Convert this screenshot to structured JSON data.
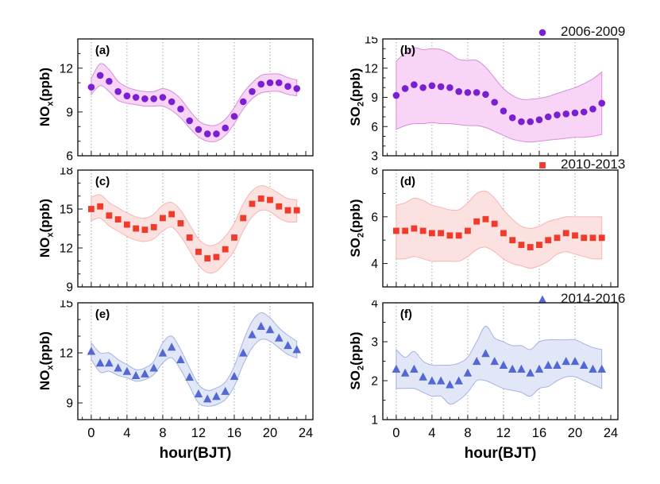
{
  "legend": [
    {
      "label": "2006-2009",
      "marker": "circle",
      "color": "#7a1fd2"
    },
    {
      "label": "2010-2013",
      "marker": "square",
      "color": "#ef3b2c"
    },
    {
      "label": "2014-2016",
      "marker": "triangle",
      "color": "#5468d4"
    }
  ],
  "chart_data": {
    "type": "scatter",
    "xlabel": "hour(BJT)",
    "x": [
      0,
      1,
      2,
      3,
      4,
      5,
      6,
      7,
      8,
      9,
      10,
      11,
      12,
      13,
      14,
      15,
      16,
      17,
      18,
      19,
      20,
      21,
      22,
      23
    ],
    "xlim": [
      -1.5,
      24.8
    ],
    "xticks": [
      0,
      4,
      8,
      12,
      16,
      20,
      24
    ],
    "x_minor_step": 1,
    "gridlines_x": [
      0,
      4,
      8,
      12,
      16,
      20
    ],
    "grid_style": "dotted-vertical",
    "legend_position": "above-right-panels",
    "panels": [
      {
        "letter": "(a)",
        "series": "2006-2009",
        "ylabel": {
          "pre": "NO",
          "sub": "x",
          "post": "(ppb)"
        },
        "marker": "circle",
        "marker_color": "#7a1fd2",
        "band_fill": "#f8d4f6",
        "band_edge": "#d590da",
        "ylim": [
          6,
          14
        ],
        "yticks": [
          6,
          9,
          12
        ],
        "y_minor_step": 1,
        "show_x_labels": false,
        "values": [
          10.7,
          11.5,
          11.1,
          10.4,
          10.1,
          10.0,
          9.9,
          9.9,
          10.0,
          9.7,
          9.2,
          8.4,
          7.8,
          7.5,
          7.5,
          7.9,
          8.7,
          9.7,
          10.4,
          10.9,
          11.0,
          11.0,
          10.75,
          10.6
        ],
        "band_upper": [
          11.3,
          12.3,
          11.9,
          11.1,
          10.7,
          10.5,
          10.4,
          10.4,
          10.6,
          10.4,
          9.9,
          9.1,
          8.4,
          8.1,
          8.1,
          8.5,
          9.3,
          10.3,
          11.0,
          11.5,
          11.6,
          11.6,
          11.35,
          11.2
        ],
        "band_lower": [
          10.2,
          10.8,
          10.4,
          9.8,
          9.6,
          9.5,
          9.4,
          9.4,
          9.4,
          9.1,
          8.6,
          7.9,
          7.3,
          7.0,
          7.0,
          7.4,
          8.2,
          9.2,
          9.9,
          10.3,
          10.4,
          10.4,
          10.2,
          10.1
        ]
      },
      {
        "letter": "(b)",
        "series": "2006-2009",
        "ylabel": {
          "pre": "SO",
          "sub": "2",
          "post": "(ppb)"
        },
        "marker": "circle",
        "marker_color": "#7a1fd2",
        "band_fill": "#f8d4f6",
        "band_edge": "#d590da",
        "ylim": [
          3,
          15
        ],
        "yticks": [
          3,
          6,
          9,
          12,
          15
        ],
        "y_minor_step": 1,
        "show_x_labels": false,
        "values": [
          9.2,
          9.9,
          10.3,
          10.0,
          10.2,
          10.1,
          10.0,
          9.6,
          9.5,
          9.5,
          9.3,
          8.5,
          7.6,
          6.9,
          6.5,
          6.5,
          6.7,
          7.0,
          7.2,
          7.3,
          7.4,
          7.5,
          7.8,
          8.4
        ],
        "band_upper": [
          12.7,
          13.6,
          14.1,
          13.9,
          14.0,
          13.9,
          13.5,
          12.9,
          12.8,
          12.8,
          12.1,
          11.0,
          9.9,
          9.2,
          8.8,
          8.8,
          8.9,
          9.1,
          9.4,
          9.7,
          10.0,
          10.4,
          10.9,
          11.6
        ],
        "band_lower": [
          5.7,
          6.1,
          6.3,
          6.3,
          6.4,
          6.3,
          6.3,
          6.2,
          6.1,
          6.1,
          5.9,
          5.5,
          5.1,
          4.7,
          4.5,
          4.4,
          4.5,
          4.6,
          4.7,
          4.8,
          4.9,
          4.9,
          5.0,
          5.2
        ]
      },
      {
        "letter": "(c)",
        "series": "2010-2013",
        "ylabel": {
          "pre": "NO",
          "sub": "x",
          "post": "(ppb)"
        },
        "marker": "square",
        "marker_color": "#ef3b2c",
        "band_fill": "#fbe2e0",
        "band_edge": "#f5b6b1",
        "ylim": [
          9,
          18
        ],
        "yticks": [
          9,
          12,
          15,
          18
        ],
        "y_minor_step": 1,
        "show_x_labels": false,
        "values": [
          15.0,
          15.2,
          14.5,
          14.2,
          13.8,
          13.5,
          13.4,
          13.6,
          14.3,
          14.6,
          13.9,
          12.8,
          11.7,
          11.2,
          11.3,
          11.9,
          12.8,
          14.3,
          15.4,
          15.8,
          15.7,
          15.2,
          14.9,
          14.9
        ],
        "band_upper": [
          15.9,
          16.1,
          15.5,
          15.1,
          14.7,
          14.4,
          14.3,
          14.6,
          15.3,
          15.5,
          14.9,
          13.8,
          12.7,
          12.2,
          12.3,
          12.9,
          13.9,
          15.4,
          16.4,
          16.8,
          16.6,
          16.2,
          15.8,
          15.7
        ],
        "band_lower": [
          14.1,
          14.3,
          13.7,
          13.3,
          12.9,
          12.6,
          12.5,
          12.7,
          13.3,
          13.6,
          12.9,
          11.8,
          10.7,
          10.1,
          10.2,
          10.9,
          11.8,
          13.3,
          14.4,
          14.9,
          14.8,
          14.3,
          14.0,
          14.0
        ]
      },
      {
        "letter": "(d)",
        "series": "2010-2013",
        "ylabel": {
          "pre": "SO",
          "sub": "2",
          "post": "(ppb)"
        },
        "marker": "square",
        "marker_color": "#ef3b2c",
        "band_fill": "#fbe2e0",
        "band_edge": "#f5b6b1",
        "ylim": [
          3,
          8
        ],
        "yticks": [
          4,
          6,
          8
        ],
        "y_minor_step": 1,
        "show_x_labels": false,
        "values": [
          5.4,
          5.4,
          5.5,
          5.4,
          5.3,
          5.3,
          5.2,
          5.2,
          5.4,
          5.8,
          5.9,
          5.7,
          5.3,
          5.0,
          4.8,
          4.7,
          4.8,
          5.0,
          5.1,
          5.3,
          5.2,
          5.1,
          5.1,
          5.1
        ],
        "band_upper": [
          6.5,
          6.6,
          6.8,
          6.7,
          6.5,
          6.4,
          6.3,
          6.3,
          6.6,
          7.0,
          7.1,
          6.8,
          6.3,
          5.9,
          5.6,
          5.5,
          5.6,
          5.8,
          5.9,
          6.0,
          6.0,
          6.0,
          6.0,
          6.0
        ],
        "band_lower": [
          4.2,
          4.2,
          4.3,
          4.2,
          4.1,
          4.1,
          4.1,
          4.1,
          4.3,
          4.6,
          4.7,
          4.5,
          4.2,
          4.0,
          3.9,
          3.8,
          3.9,
          4.1,
          4.4,
          4.5,
          4.4,
          4.3,
          4.2,
          4.2
        ]
      },
      {
        "letter": "(e)",
        "series": "2014-2016",
        "ylabel": {
          "pre": "NO",
          "sub": "x",
          "post": "(ppb)"
        },
        "marker": "triangle",
        "marker_color": "#5468d4",
        "band_fill": "#e2e7f8",
        "band_edge": "#a4b2e6",
        "ylim": [
          8,
          15
        ],
        "yticks": [
          9,
          12,
          15
        ],
        "y_minor_step": 1,
        "show_x_labels": true,
        "values": [
          12.1,
          11.4,
          11.4,
          11.1,
          10.9,
          10.65,
          10.75,
          11.1,
          12.0,
          12.35,
          11.6,
          10.55,
          9.55,
          9.25,
          9.4,
          9.7,
          10.6,
          12.0,
          13.1,
          13.6,
          13.4,
          12.9,
          12.45,
          12.2
        ],
        "band_upper": [
          12.6,
          12.0,
          12.0,
          11.6,
          11.3,
          11.0,
          11.1,
          11.5,
          12.6,
          13.0,
          12.2,
          11.1,
          10.1,
          9.75,
          9.9,
          10.25,
          11.2,
          12.7,
          13.9,
          14.4,
          14.1,
          13.5,
          13.05,
          12.7
        ],
        "band_lower": [
          11.6,
          10.85,
          10.9,
          10.65,
          10.5,
          10.3,
          10.4,
          10.7,
          11.4,
          11.7,
          11.0,
          10.0,
          9.0,
          8.8,
          8.9,
          9.2,
          10.0,
          11.3,
          12.3,
          12.8,
          12.7,
          12.3,
          11.9,
          11.7
        ]
      },
      {
        "letter": "(f)",
        "series": "2014-2016",
        "ylabel": {
          "pre": "SO",
          "sub": "2",
          "post": "(ppb)"
        },
        "marker": "triangle",
        "marker_color": "#5468d4",
        "band_fill": "#e2e7f8",
        "band_edge": "#a4b2e6",
        "ylim": [
          1,
          4
        ],
        "yticks": [
          1,
          2,
          3,
          4
        ],
        "y_minor_step": 0.5,
        "show_x_labels": true,
        "values": [
          2.3,
          2.2,
          2.3,
          2.1,
          2.0,
          2.0,
          1.9,
          2.0,
          2.2,
          2.5,
          2.7,
          2.5,
          2.4,
          2.3,
          2.3,
          2.2,
          2.3,
          2.4,
          2.4,
          2.5,
          2.5,
          2.4,
          2.3,
          2.3
        ],
        "band_upper": [
          2.8,
          2.6,
          2.75,
          2.5,
          2.4,
          2.4,
          2.4,
          2.45,
          2.6,
          3.0,
          3.4,
          3.1,
          3.0,
          2.9,
          2.9,
          2.8,
          3.0,
          3.05,
          3.05,
          3.05,
          3.05,
          2.95,
          2.85,
          2.8
        ],
        "band_lower": [
          1.8,
          1.8,
          1.8,
          1.7,
          1.6,
          1.6,
          1.4,
          1.5,
          1.7,
          2.0,
          2.0,
          1.9,
          1.8,
          1.75,
          1.7,
          1.6,
          1.8,
          1.85,
          2.0,
          2.1,
          2.1,
          2.0,
          1.9,
          1.8
        ]
      }
    ]
  }
}
